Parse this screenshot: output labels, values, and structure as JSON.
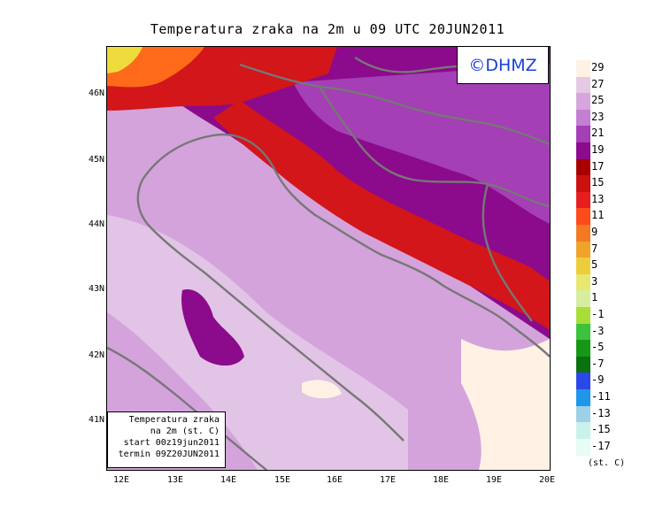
{
  "title": "Temperatura zraka na 2m u 09 UTC 20JUN2011",
  "logo": "©DHMZ",
  "info": {
    "line1": "Temperatura zraka",
    "line2": "na 2m (st. C)",
    "line3": "start 00z19jun2011",
    "line4": "termin 09Z20JUN2011"
  },
  "lat_labels": [
    "46N",
    "45N",
    "44N",
    "43N",
    "42N",
    "41N"
  ],
  "lon_labels": [
    "12E",
    "13E",
    "14E",
    "15E",
    "16E",
    "17E",
    "18E",
    "19E",
    "20E"
  ],
  "colorbar": {
    "labels": [
      "29",
      "27",
      "25",
      "23",
      "21",
      "19",
      "17",
      "15",
      "13",
      "11",
      "9",
      "7",
      "5",
      "3",
      "1",
      "-1",
      "-3",
      "-5",
      "-7",
      "-9",
      "-11",
      "-13",
      "-15",
      "-17"
    ],
    "colors": [
      "#fff2e4",
      "#e6c9e4",
      "#d7a5de",
      "#c47ed2",
      "#a43fb5",
      "#8c0a8c",
      "#a80000",
      "#cc1010",
      "#e81e1e",
      "#ff4a1a",
      "#f37a22",
      "#f0a32a",
      "#eecd3a",
      "#e8e870",
      "#d6eea0",
      "#a8dd3a",
      "#3cc23c",
      "#169816",
      "#0a7010",
      "#2a48e8",
      "#1e96ea",
      "#9ed0e6",
      "#c8f2ea",
      "#e6fcf4"
    ],
    "unit": "(st. C)"
  },
  "map_colors": {
    "sea": "#d4a3dc",
    "sea_light": "#e2c4e6",
    "warm": "#fff2e4",
    "purple": "#a43fb5",
    "deep": "#8c0a8c",
    "red": "#d2161a",
    "orange": "#ff6a1a",
    "yellow": "#eedc3c",
    "border": "#777777"
  }
}
